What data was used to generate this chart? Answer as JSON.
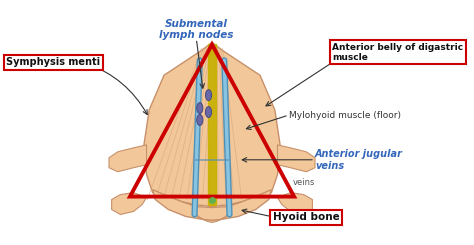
{
  "bg_color": "#ffffff",
  "neck_fill": "#f2c89a",
  "neck_edge": "#c8906a",
  "neck_stripe": "#d4a070",
  "triangle_color": "#cc0000",
  "yellow_color": "#c8b000",
  "green_color": "#60b050",
  "blue_vein": "#88c4e0",
  "blue_vein_dark": "#5090b8",
  "lymph_color": "#6868a8",
  "lymph_edge": "#484880",
  "labels": {
    "submental": "Submental\nlymph nodes",
    "symphysis": "Symphysis menti",
    "anterior_belly": "Anterior belly of digastric\nmuscle",
    "mylohyoid": "Mylohyoid muscle (floor)",
    "jugular": "Anterior jugular\nveins",
    "veins": "veins",
    "hyoid": "Hyoid bone"
  },
  "label_colors": {
    "submental": "#3366bb",
    "symphysis": "#111111",
    "anterior_belly": "#111111",
    "mylohyoid": "#333333",
    "jugular": "#3366bb",
    "veins": "#555555",
    "hyoid": "#111111"
  },
  "box_red": "#cc0000",
  "figsize": [
    4.74,
    2.45
  ],
  "dpi": 100
}
